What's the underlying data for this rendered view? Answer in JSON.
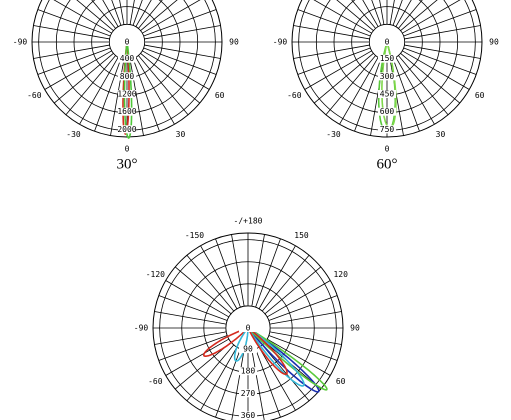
{
  "diagrams": [
    {
      "angle_labels": [
        -90,
        -60,
        -30,
        0,
        30,
        60,
        90
      ],
      "radial_labels": [
        0,
        400,
        800,
        1200,
        1600,
        2000
      ],
      "caption": "30°"
    },
    {
      "angle_labels": [
        -90,
        -60,
        -30,
        0,
        30,
        60,
        90
      ],
      "radial_labels": [
        0,
        150,
        300,
        450,
        600,
        750
      ],
      "caption": "60°"
    },
    {
      "angle_labels": [
        -150,
        150,
        -120,
        120,
        -90,
        90,
        -60,
        60,
        {
          "value": 180,
          "label": "-/+180"
        }
      ],
      "radial_labels": [
        0,
        90,
        180,
        270,
        360
      ]
    }
  ]
}
